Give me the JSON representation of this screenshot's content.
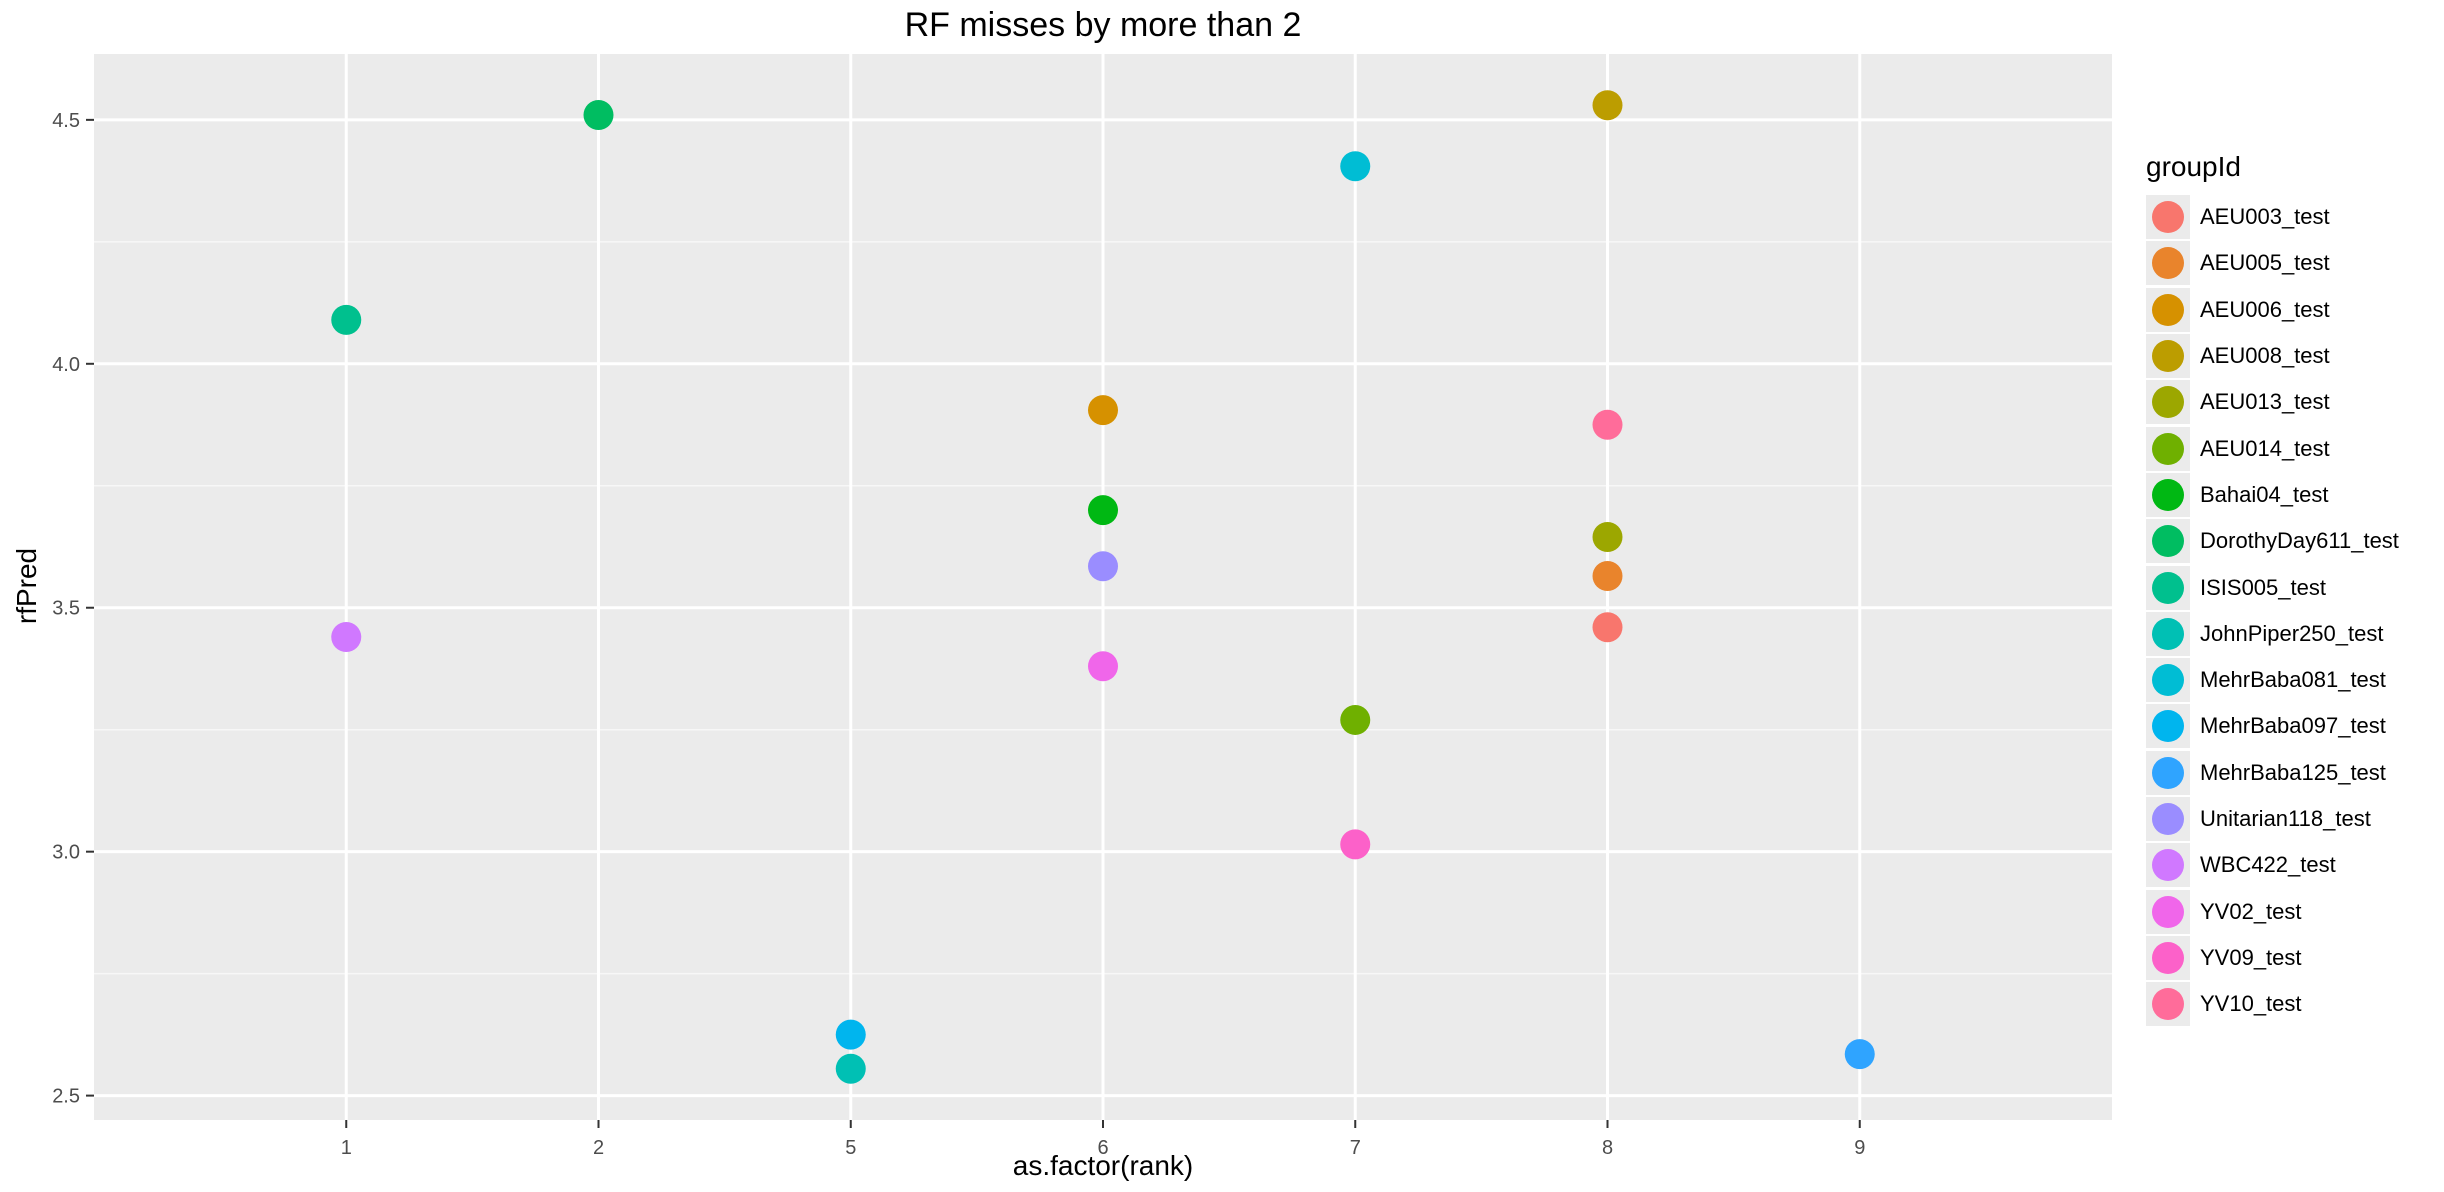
{
  "chart_data": {
    "type": "scatter",
    "title": "RF misses by more than 2",
    "xlabel": "as.factor(rank)",
    "ylabel": "rfPred",
    "categories": [
      "1",
      "2",
      "5",
      "6",
      "7",
      "8",
      "9"
    ],
    "ylim": [
      2.45,
      4.635
    ],
    "yticks": [
      2.5,
      3.0,
      3.5,
      4.0,
      4.5
    ],
    "ytick_labels": [
      "2.5",
      "3.0",
      "3.5",
      "4.0",
      "4.5"
    ],
    "grid": true,
    "legend": {
      "title": "groupId",
      "placement": "right",
      "entries": [
        {
          "label": "AEU003_test",
          "color": "#F8766D"
        },
        {
          "label": "AEU005_test",
          "color": "#E9842C"
        },
        {
          "label": "AEU006_test",
          "color": "#D69100"
        },
        {
          "label": "AEU008_test",
          "color": "#BC9D00"
        },
        {
          "label": "AEU013_test",
          "color": "#9CA700"
        },
        {
          "label": "AEU014_test",
          "color": "#6FB000"
        },
        {
          "label": "Bahai04_test",
          "color": "#00B813"
        },
        {
          "label": "DorothyDay611_test",
          "color": "#00BD61"
        },
        {
          "label": "ISIS005_test",
          "color": "#00C08E"
        },
        {
          "label": "JohnPiper250_test",
          "color": "#00C0B4"
        },
        {
          "label": "MehrBaba081_test",
          "color": "#00BDD4"
        },
        {
          "label": "MehrBaba097_test",
          "color": "#00B5EE"
        },
        {
          "label": "MehrBaba125_test",
          "color": "#2FA4FF"
        },
        {
          "label": "Unitarian118_test",
          "color": "#9A8DFF"
        },
        {
          "label": "WBC422_test",
          "color": "#D078FF"
        },
        {
          "label": "YV02_test",
          "color": "#F066EA"
        },
        {
          "label": "YV09_test",
          "color": "#FC61C9"
        },
        {
          "label": "YV10_test",
          "color": "#FF6C9A"
        }
      ]
    },
    "points": [
      {
        "x": "1",
        "y": 4.09,
        "group": "ISIS005_test"
      },
      {
        "x": "1",
        "y": 3.44,
        "group": "WBC422_test"
      },
      {
        "x": "2",
        "y": 4.51,
        "group": "DorothyDay611_test"
      },
      {
        "x": "5",
        "y": 2.625,
        "group": "MehrBaba097_test"
      },
      {
        "x": "5",
        "y": 2.555,
        "group": "JohnPiper250_test"
      },
      {
        "x": "6",
        "y": 3.905,
        "group": "AEU006_test"
      },
      {
        "x": "6",
        "y": 3.7,
        "group": "Bahai04_test"
      },
      {
        "x": "6",
        "y": 3.585,
        "group": "Unitarian118_test"
      },
      {
        "x": "6",
        "y": 3.38,
        "group": "YV02_test"
      },
      {
        "x": "7",
        "y": 4.405,
        "group": "MehrBaba081_test"
      },
      {
        "x": "7",
        "y": 3.27,
        "group": "AEU014_test"
      },
      {
        "x": "7",
        "y": 3.015,
        "group": "YV09_test"
      },
      {
        "x": "8",
        "y": 4.53,
        "group": "AEU008_test"
      },
      {
        "x": "8",
        "y": 3.875,
        "group": "YV10_test"
      },
      {
        "x": "8",
        "y": 3.645,
        "group": "AEU013_test"
      },
      {
        "x": "8",
        "y": 3.565,
        "group": "AEU005_test"
      },
      {
        "x": "8",
        "y": 3.46,
        "group": "AEU003_test"
      },
      {
        "x": "9",
        "y": 2.585,
        "group": "MehrBaba125_test"
      }
    ]
  }
}
